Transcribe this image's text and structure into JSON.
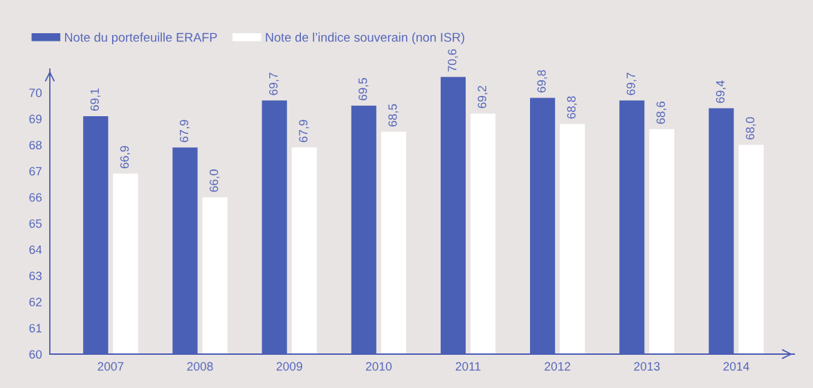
{
  "chart_data": {
    "type": "bar",
    "categories": [
      "2007",
      "2008",
      "2009",
      "2010",
      "2011",
      "2012",
      "2013",
      "2014"
    ],
    "series": [
      {
        "name": "Note du portefeuille ERAFP",
        "color": "#4a60b6",
        "values": [
          69.1,
          67.9,
          69.7,
          69.5,
          70.6,
          69.8,
          69.7,
          69.4
        ],
        "value_labels": [
          "69,1",
          "67,9",
          "69,7",
          "69,5",
          "70,6",
          "69,8",
          "69,7",
          "69,4"
        ]
      },
      {
        "name": "Note de l’indice souverain (non ISR)",
        "color": "#ffffff",
        "values": [
          66.9,
          66.0,
          67.9,
          68.5,
          69.2,
          68.8,
          68.6,
          68.0
        ],
        "value_labels": [
          "66,9",
          "66,0",
          "67,9",
          "68,5",
          "69,2",
          "68,8",
          "68,6",
          "68,0"
        ]
      }
    ],
    "ylim": [
      60,
      70.9
    ],
    "yticks": [
      60,
      61,
      62,
      63,
      64,
      65,
      66,
      67,
      68,
      69,
      70
    ],
    "legend": "top left",
    "grid": false
  }
}
